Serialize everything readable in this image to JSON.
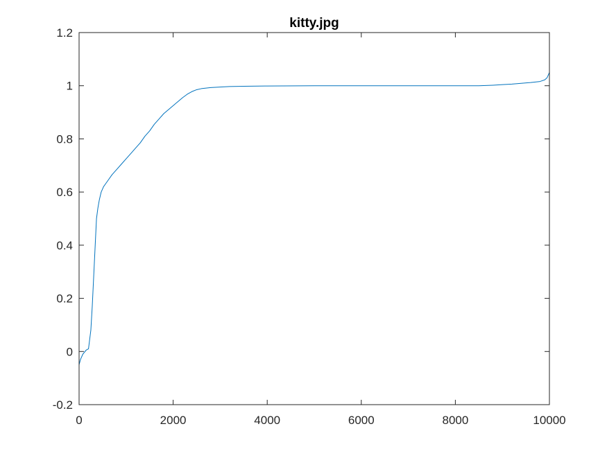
{
  "figure": {
    "background": "#ffffff"
  },
  "chart_data": {
    "type": "line",
    "title": "kitty.jpg",
    "xlabel": "",
    "ylabel": "",
    "xlim": [
      0,
      10000
    ],
    "ylim": [
      -0.2,
      1.2
    ],
    "x_ticks": [
      0,
      2000,
      4000,
      6000,
      8000,
      10000
    ],
    "x_tick_labels": [
      "0",
      "2000",
      "4000",
      "6000",
      "8000",
      "10000"
    ],
    "y_ticks": [
      -0.2,
      0,
      0.2,
      0.4,
      0.6,
      0.8,
      1,
      1.2
    ],
    "y_tick_labels": [
      "-0.2",
      "0",
      "0.2",
      "0.4",
      "0.6",
      "0.8",
      "1",
      "1.2"
    ],
    "grid": false,
    "box": true,
    "line_color": "#0072bd",
    "axes_color": "#262626",
    "series": [
      {
        "x": [
          0,
          30,
          80,
          150,
          200,
          250,
          280,
          310,
          340,
          370,
          400,
          430,
          470,
          520,
          560,
          620,
          700,
          800,
          900,
          1000,
          1100,
          1200,
          1300,
          1400,
          1500,
          1600,
          1700,
          1800,
          1900,
          2000,
          2100,
          2200,
          2300,
          2400,
          2500,
          2600,
          2700,
          2800,
          3000,
          3200,
          3500,
          4000,
          5000,
          6000,
          7000,
          8000,
          8500,
          8800,
          9000,
          9200,
          9400,
          9600,
          9800,
          9900,
          9950,
          10000
        ],
        "y": [
          -0.05,
          -0.03,
          -0.01,
          0.005,
          0.01,
          0.08,
          0.17,
          0.28,
          0.39,
          0.5,
          0.54,
          0.57,
          0.6,
          0.62,
          0.63,
          0.645,
          0.665,
          0.685,
          0.705,
          0.725,
          0.745,
          0.765,
          0.785,
          0.81,
          0.83,
          0.855,
          0.875,
          0.895,
          0.91,
          0.925,
          0.94,
          0.955,
          0.968,
          0.978,
          0.985,
          0.989,
          0.991,
          0.993,
          0.995,
          0.997,
          0.998,
          0.999,
          1.0,
          1.0,
          1.0,
          1.0,
          1.0,
          1.002,
          1.004,
          1.006,
          1.009,
          1.012,
          1.016,
          1.022,
          1.03,
          1.05
        ]
      }
    ]
  }
}
